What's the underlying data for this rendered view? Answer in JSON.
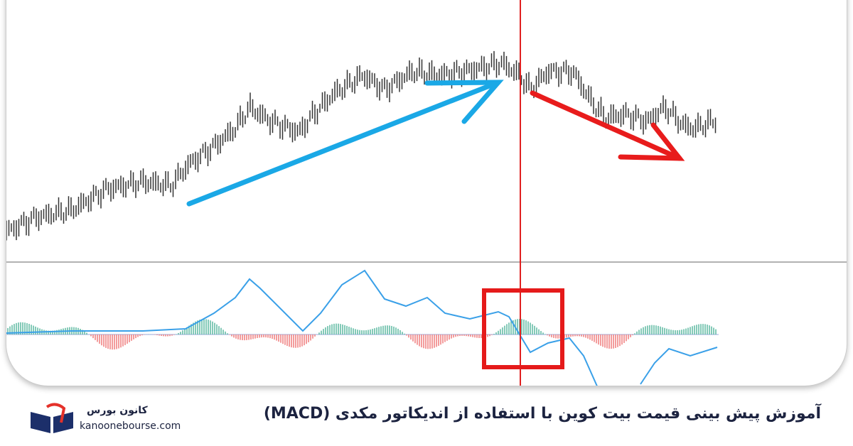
{
  "caption": "آموزش پیش بینی قیمت بیت کوین با استفاده از اندیکاتور مکدی (MACD)",
  "brand": {
    "name": "کانون بورس",
    "site": "kanoonebourse.com"
  }
}
